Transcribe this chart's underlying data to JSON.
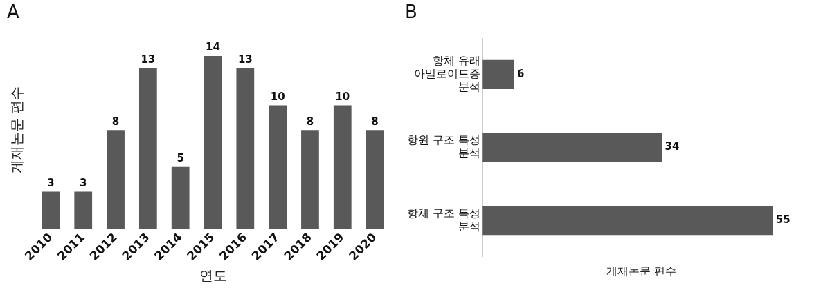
{
  "chart_data": [
    {
      "type": "bar",
      "title": "A",
      "xlabel": "연도",
      "ylabel": "게재논문 편수",
      "categories": [
        "2010",
        "2011",
        "2012",
        "2013",
        "2014",
        "2015",
        "2016",
        "2017",
        "2018",
        "2019",
        "2020"
      ],
      "values": [
        3,
        3,
        8,
        13,
        5,
        14,
        13,
        10,
        8,
        10,
        8
      ],
      "color": "#595959",
      "data_labels": true,
      "grid": false,
      "legend": false,
      "tick_labels": "x"
    },
    {
      "type": "bar",
      "title": "B",
      "orientation": "horizontal",
      "xlabel": "게재논문 편수",
      "categories": [
        "항체 유래 아밀로이드증 분석",
        "항원 구조 특성 분석",
        "항체 구조 특성 분석"
      ],
      "values": [
        6,
        34,
        55
      ],
      "color": "#595959",
      "data_labels": true,
      "grid": false,
      "legend": false,
      "tick_labels": "y"
    }
  ]
}
